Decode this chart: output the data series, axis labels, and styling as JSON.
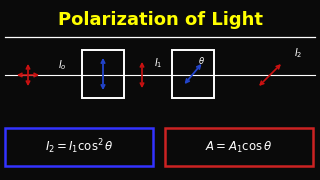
{
  "title": "Polarization of Light",
  "title_color": "#FFFF00",
  "bg_color": "#0a0a0a",
  "formula1": "$\\mathcal{I}_2 = \\mathcal{I}_1\\,\\cos^2\\theta$",
  "formula2": "$A = A_1\\cos\\theta$",
  "formula1_box_color": "#3333FF",
  "formula2_box_color": "#CC2222",
  "text_color": "#FFFFFF",
  "arrow_red": "#CC1111",
  "arrow_blue": "#2244CC",
  "box_edge": "#FFFFFF",
  "beam_color": "#FFFFFF",
  "sep_line_color": "#FFFFFF"
}
